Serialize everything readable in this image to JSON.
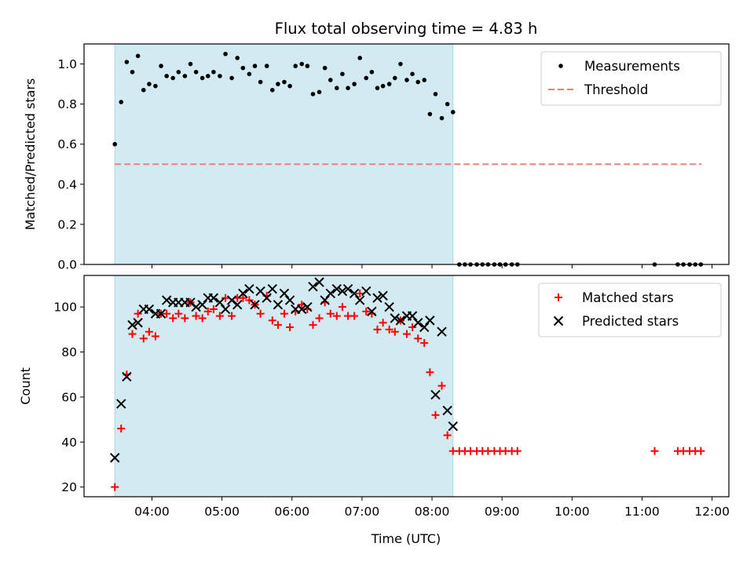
{
  "chart_data": {
    "title": "Flux total observing time = 4.83 h",
    "xlabel": "Time (UTC)",
    "x_unit": "hours (UTC)",
    "xlim": [
      3.03,
      12.24
    ],
    "x_ticks": [
      {
        "value": 4,
        "label": "04:00"
      },
      {
        "value": 5,
        "label": "05:00"
      },
      {
        "value": 6,
        "label": "06:00"
      },
      {
        "value": 7,
        "label": "07:00"
      },
      {
        "value": 8,
        "label": "08:00"
      },
      {
        "value": 9,
        "label": "09:00"
      },
      {
        "value": 10,
        "label": "10:00"
      },
      {
        "value": 11,
        "label": "11:00"
      },
      {
        "value": 12,
        "label": "12:00"
      }
    ],
    "shaded_interval": {
      "start": 3.47,
      "end": 8.3,
      "color": "#add8e6"
    },
    "colors": {
      "measurement": "#000000",
      "threshold": "#f08080",
      "matched": "#ff0000",
      "predicted": "#000000"
    },
    "panels": [
      {
        "type": "scatter",
        "ylabel": "Matched/Predicted stars",
        "ylim": [
          0,
          1.1
        ],
        "y_ticks": [
          {
            "value": 0,
            "label": "0.0"
          },
          {
            "value": 0.2,
            "label": "0.2"
          },
          {
            "value": 0.4,
            "label": "0.4"
          },
          {
            "value": 0.6,
            "label": "0.6"
          },
          {
            "value": 0.8,
            "label": "0.8"
          },
          {
            "value": 1.0,
            "label": "1.0"
          }
        ],
        "legend": {
          "position": "upper right",
          "entries": [
            "Measurements",
            "Threshold"
          ]
        },
        "threshold": {
          "name": "Threshold",
          "value": 0.5,
          "x_start": 3.47,
          "x_end": 11.85,
          "style": "dashed"
        },
        "series": [
          {
            "name": "Measurements",
            "marker": "dot",
            "points": [
              [
                3.47,
                0.6
              ],
              [
                3.56,
                0.81
              ],
              [
                3.64,
                1.01
              ],
              [
                3.72,
                0.96
              ],
              [
                3.8,
                1.04
              ],
              [
                3.88,
                0.87
              ],
              [
                3.96,
                0.9
              ],
              [
                4.05,
                0.89
              ],
              [
                4.13,
                0.99
              ],
              [
                4.21,
                0.94
              ],
              [
                4.3,
                0.93
              ],
              [
                4.38,
                0.96
              ],
              [
                4.47,
                0.94
              ],
              [
                4.55,
                1.0
              ],
              [
                4.63,
                0.96
              ],
              [
                4.72,
                0.93
              ],
              [
                4.8,
                0.94
              ],
              [
                4.88,
                0.96
              ],
              [
                4.97,
                0.94
              ],
              [
                5.05,
                1.05
              ],
              [
                5.14,
                0.93
              ],
              [
                5.22,
                1.03
              ],
              [
                5.3,
                0.98
              ],
              [
                5.39,
                0.95
              ],
              [
                5.47,
                0.99
              ],
              [
                5.55,
                0.91
              ],
              [
                5.64,
                0.99
              ],
              [
                5.72,
                0.87
              ],
              [
                5.8,
                0.9
              ],
              [
                5.89,
                0.91
              ],
              [
                5.97,
                0.89
              ],
              [
                6.05,
                0.99
              ],
              [
                6.14,
                1.0
              ],
              [
                6.22,
                0.99
              ],
              [
                6.3,
                0.85
              ],
              [
                6.39,
                0.86
              ],
              [
                6.47,
                0.98
              ],
              [
                6.55,
                0.92
              ],
              [
                6.64,
                0.88
              ],
              [
                6.72,
                0.95
              ],
              [
                6.8,
                0.88
              ],
              [
                6.89,
                0.9
              ],
              [
                6.97,
                1.03
              ],
              [
                7.06,
                0.93
              ],
              [
                7.14,
                0.96
              ],
              [
                7.22,
                0.88
              ],
              [
                7.3,
                0.89
              ],
              [
                7.39,
                0.9
              ],
              [
                7.47,
                0.93
              ],
              [
                7.55,
                1.0
              ],
              [
                7.64,
                0.92
              ],
              [
                7.72,
                0.95
              ],
              [
                7.8,
                0.91
              ],
              [
                7.89,
                0.92
              ],
              [
                7.97,
                0.75
              ],
              [
                8.05,
                0.85
              ],
              [
                8.14,
                0.73
              ],
              [
                8.22,
                0.8
              ],
              [
                8.3,
                0.76
              ],
              [
                8.39,
                0.0
              ],
              [
                8.47,
                0.0
              ],
              [
                8.55,
                0.0
              ],
              [
                8.64,
                0.0
              ],
              [
                8.72,
                0.0
              ],
              [
                8.8,
                0.0
              ],
              [
                8.89,
                0.0
              ],
              [
                8.97,
                0.0
              ],
              [
                9.05,
                0.0
              ],
              [
                9.14,
                0.0
              ],
              [
                9.22,
                0.0
              ],
              [
                11.18,
                0.0
              ],
              [
                11.51,
                0.0
              ],
              [
                11.59,
                0.0
              ],
              [
                11.68,
                0.0
              ],
              [
                11.76,
                0.0
              ],
              [
                11.84,
                0.0
              ]
            ]
          }
        ]
      },
      {
        "type": "scatter",
        "ylabel": "Count",
        "ylim": [
          15.7,
          114
        ],
        "y_ticks": [
          {
            "value": 20,
            "label": "20"
          },
          {
            "value": 40,
            "label": "40"
          },
          {
            "value": 60,
            "label": "60"
          },
          {
            "value": 80,
            "label": "80"
          },
          {
            "value": 100,
            "label": "100"
          }
        ],
        "legend": {
          "position": "upper right",
          "entries": [
            "Matched stars",
            "Predicted stars"
          ]
        },
        "series": [
          {
            "name": "Matched stars",
            "marker": "plus",
            "points": [
              [
                3.47,
                20
              ],
              [
                3.56,
                46
              ],
              [
                3.64,
                70
              ],
              [
                3.72,
                88
              ],
              [
                3.8,
                97
              ],
              [
                3.88,
                86
              ],
              [
                3.96,
                89
              ],
              [
                4.05,
                87
              ],
              [
                4.13,
                97
              ],
              [
                4.21,
                97
              ],
              [
                4.3,
                95
              ],
              [
                4.38,
                97
              ],
              [
                4.47,
                95
              ],
              [
                4.55,
                102
              ],
              [
                4.63,
                96
              ],
              [
                4.72,
                95
              ],
              [
                4.8,
                98
              ],
              [
                4.88,
                99
              ],
              [
                4.97,
                96
              ],
              [
                5.05,
                104
              ],
              [
                5.14,
                96
              ],
              [
                5.22,
                104
              ],
              [
                5.3,
                104
              ],
              [
                5.39,
                103
              ],
              [
                5.47,
                101
              ],
              [
                5.55,
                97
              ],
              [
                5.64,
                105
              ],
              [
                5.72,
                94
              ],
              [
                5.8,
                92
              ],
              [
                5.89,
                97
              ],
              [
                5.97,
                91
              ],
              [
                6.05,
                98
              ],
              [
                6.14,
                101
              ],
              [
                6.22,
                99
              ],
              [
                6.3,
                92
              ],
              [
                6.39,
                95
              ],
              [
                6.47,
                102
              ],
              [
                6.55,
                97
              ],
              [
                6.64,
                96
              ],
              [
                6.72,
                100
              ],
              [
                6.8,
                96
              ],
              [
                6.89,
                96
              ],
              [
                6.97,
                106
              ],
              [
                7.06,
                98
              ],
              [
                7.14,
                97
              ],
              [
                7.22,
                90
              ],
              [
                7.3,
                93
              ],
              [
                7.39,
                90
              ],
              [
                7.47,
                89
              ],
              [
                7.55,
                94
              ],
              [
                7.64,
                88
              ],
              [
                7.72,
                91
              ],
              [
                7.8,
                86
              ],
              [
                7.89,
                84
              ],
              [
                7.97,
                71
              ],
              [
                8.05,
                52
              ],
              [
                8.14,
                65
              ],
              [
                8.22,
                43
              ],
              [
                8.3,
                36
              ],
              [
                8.39,
                36
              ],
              [
                8.47,
                36
              ],
              [
                8.55,
                36
              ],
              [
                8.64,
                36
              ],
              [
                8.72,
                36
              ],
              [
                8.8,
                36
              ],
              [
                8.89,
                36
              ],
              [
                8.97,
                36
              ],
              [
                9.05,
                36
              ],
              [
                9.14,
                36
              ],
              [
                9.22,
                36
              ],
              [
                11.18,
                36
              ],
              [
                11.51,
                36
              ],
              [
                11.59,
                36
              ],
              [
                11.68,
                36
              ],
              [
                11.76,
                36
              ],
              [
                11.84,
                36
              ]
            ]
          },
          {
            "name": "Predicted stars",
            "marker": "x",
            "points": [
              [
                3.47,
                33
              ],
              [
                3.56,
                57
              ],
              [
                3.64,
                69
              ],
              [
                3.72,
                92
              ],
              [
                3.8,
                93
              ],
              [
                3.88,
                99
              ],
              [
                3.96,
                99
              ],
              [
                4.05,
                97
              ],
              [
                4.13,
                97
              ],
              [
                4.21,
                103
              ],
              [
                4.3,
                102
              ],
              [
                4.38,
                102
              ],
              [
                4.47,
                102
              ],
              [
                4.55,
                102
              ],
              [
                4.63,
                100
              ],
              [
                4.72,
                101
              ],
              [
                4.8,
                104
              ],
              [
                4.88,
                104
              ],
              [
                4.97,
                102
              ],
              [
                5.05,
                99
              ],
              [
                5.14,
                103
              ],
              [
                5.22,
                101
              ],
              [
                5.3,
                106
              ],
              [
                5.39,
                108
              ],
              [
                5.47,
                101
              ],
              [
                5.55,
                107
              ],
              [
                5.64,
                104
              ],
              [
                5.72,
                108
              ],
              [
                5.8,
                101
              ],
              [
                5.89,
                106
              ],
              [
                5.97,
                103
              ],
              [
                6.05,
                99
              ],
              [
                6.14,
                99
              ],
              [
                6.22,
                100
              ],
              [
                6.3,
                109
              ],
              [
                6.39,
                111
              ],
              [
                6.47,
                103
              ],
              [
                6.55,
                106
              ],
              [
                6.64,
                108
              ],
              [
                6.72,
                107
              ],
              [
                6.8,
                108
              ],
              [
                6.89,
                106
              ],
              [
                6.97,
                103
              ],
              [
                7.06,
                107
              ],
              [
                7.14,
                98
              ],
              [
                7.22,
                104
              ],
              [
                7.3,
                105
              ],
              [
                7.39,
                100
              ],
              [
                7.47,
                95
              ],
              [
                7.55,
                94
              ],
              [
                7.64,
                96
              ],
              [
                7.72,
                96
              ],
              [
                7.8,
                93
              ],
              [
                7.89,
                91
              ],
              [
                7.97,
                94
              ],
              [
                8.05,
                61
              ],
              [
                8.14,
                89
              ],
              [
                8.22,
                54
              ],
              [
                8.3,
                47
              ]
            ]
          }
        ]
      }
    ]
  }
}
